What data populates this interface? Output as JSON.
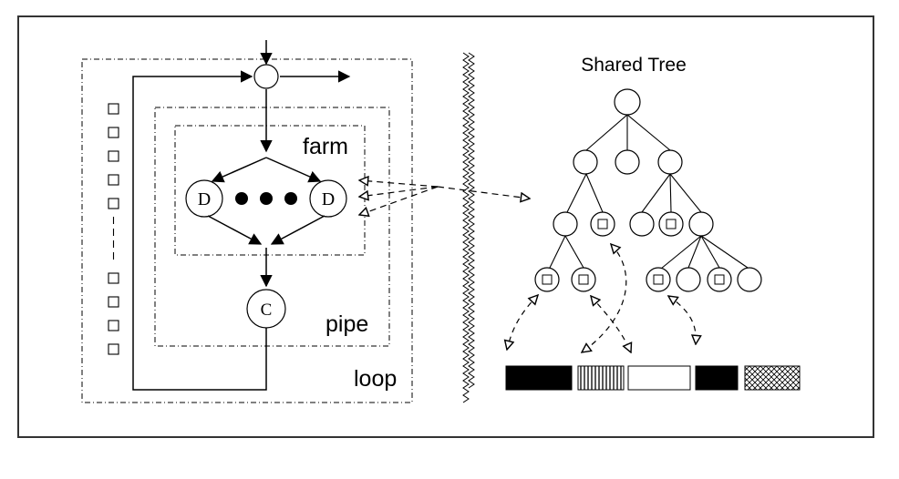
{
  "labels": {
    "farm": "farm",
    "pipe": "pipe",
    "loop": "loop",
    "shared_tree": "Shared Tree",
    "d_left": "D",
    "d_right": "D",
    "c_node": "C"
  },
  "colors": {
    "stroke": "#000000",
    "frame": "#333333",
    "fill_black": "#000000",
    "fill_white": "#ffffff"
  },
  "icons": {
    "task_queue_item": "square-icon",
    "ellipsis": "dots-icon",
    "separator": "zigzag-icon"
  },
  "memory_blocks": [
    {
      "name": "memory-block-solid",
      "pattern": "solid"
    },
    {
      "name": "memory-block-vertical-lines",
      "pattern": "vertical-lines"
    },
    {
      "name": "memory-block-empty",
      "pattern": "empty"
    },
    {
      "name": "memory-block-solid-small",
      "pattern": "solid"
    },
    {
      "name": "memory-block-crosshatch",
      "pattern": "crosshatch"
    }
  ]
}
